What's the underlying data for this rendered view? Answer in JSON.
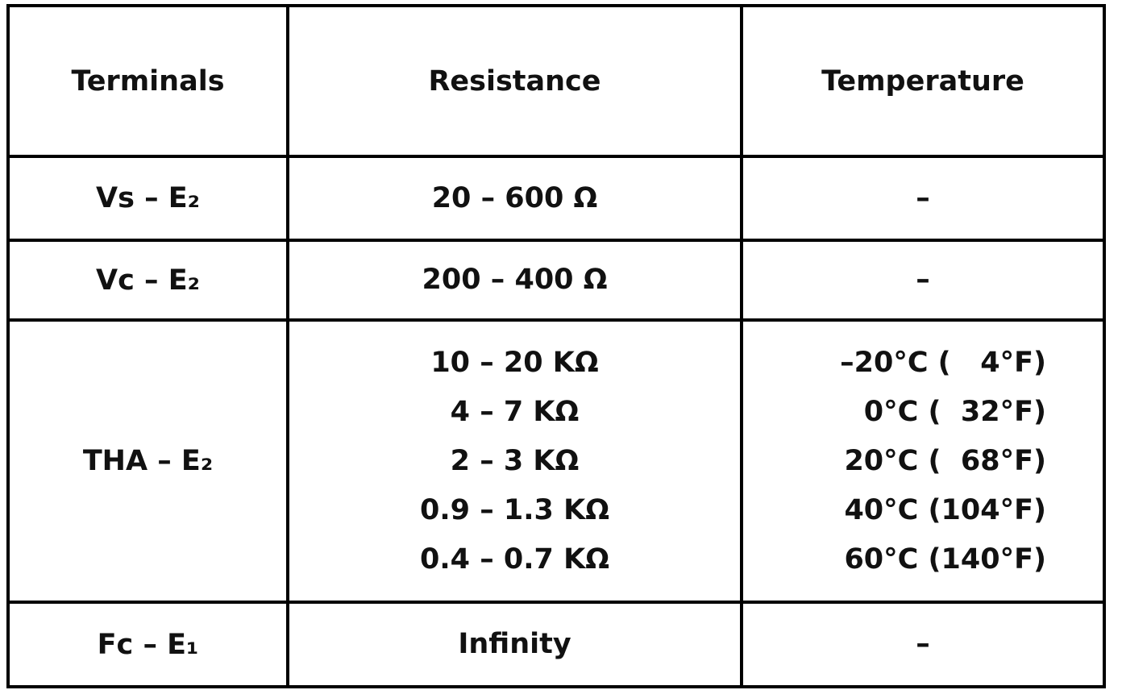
{
  "table": {
    "header": [
      "Terminals",
      "Resistance",
      "Temperature"
    ],
    "rows": [
      [
        "Vs – E₂",
        [
          "20 – 600 Ω"
        ],
        [
          "–"
        ]
      ],
      [
        "Vc – E₂",
        [
          "200 – 400 Ω"
        ],
        [
          "–"
        ]
      ],
      [
        "THA – E₂",
        [
          "10 – 20 KΩ",
          "4 – 7 KΩ",
          "2 – 3 KΩ",
          "0.9 – 1.3 KΩ",
          "0.4 – 0.7 KΩ"
        ],
        [
          "–20°C (   4°F)",
          "0°C (  32°F)",
          "20°C (  68°F)",
          "40°C (104°F)",
          "60°C (140°F)"
        ]
      ],
      [
        "Fc – E₁",
        [
          "Infinity"
        ],
        [
          "–"
        ]
      ]
    ]
  }
}
